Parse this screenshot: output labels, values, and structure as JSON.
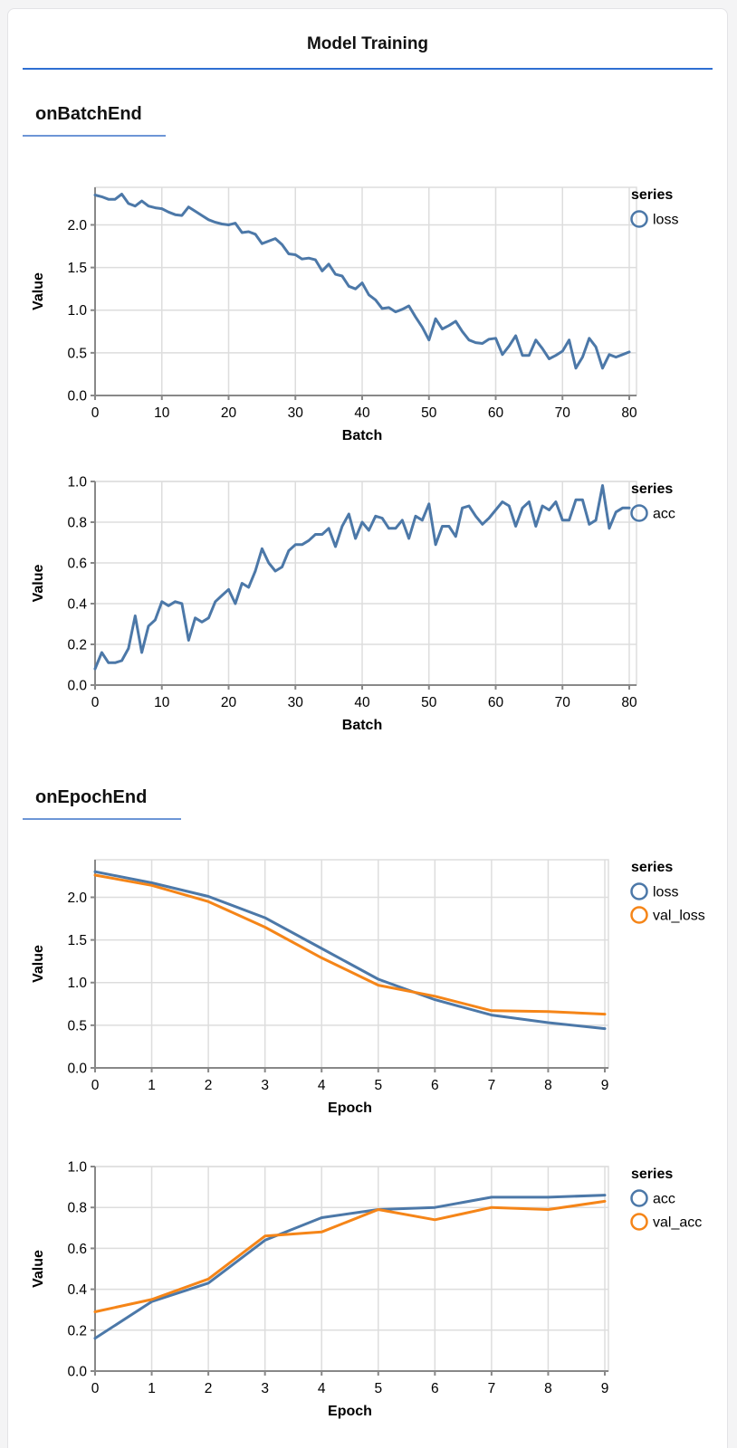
{
  "page": {
    "title": "Model Training"
  },
  "sections": [
    {
      "heading": "onBatchEnd"
    },
    {
      "heading": "onEpochEnd"
    }
  ],
  "colors": {
    "main_rule_blue": "#2e6fd2",
    "section_rule_blue": "#6d96d6",
    "series_blue": "#4c78a8",
    "series_orange": "#f58518",
    "grid": "#dddddd",
    "axis": "#888888",
    "text": "#000000"
  },
  "chart_data": [
    {
      "type": "line",
      "title": "",
      "xlabel": "Batch",
      "ylabel": "Value",
      "legend_title": "series",
      "legend_position": "right-top",
      "grid": true,
      "xlim": [
        0,
        80
      ],
      "ylim": [
        0,
        2.44
      ],
      "xticks": [
        0,
        10,
        20,
        30,
        40,
        50,
        60,
        70,
        80
      ],
      "xtick_labels": [
        "0",
        "10",
        "20",
        "30",
        "40",
        "50",
        "60",
        "70",
        "80"
      ],
      "yticks": [
        0,
        0.5,
        1.0,
        1.5,
        2.0
      ],
      "ytick_labels": [
        "0.0",
        "0.5",
        "1.0",
        "1.5",
        "2.0"
      ],
      "x_min": 0,
      "x_step": 1,
      "series": [
        {
          "name": "loss",
          "color": "#4c78a8",
          "values": [
            2.35,
            2.33,
            2.3,
            2.3,
            2.36,
            2.25,
            2.22,
            2.28,
            2.22,
            2.2,
            2.19,
            2.15,
            2.12,
            2.11,
            2.21,
            2.16,
            2.11,
            2.06,
            2.03,
            2.01,
            2.0,
            2.02,
            1.91,
            1.92,
            1.89,
            1.78,
            1.81,
            1.84,
            1.77,
            1.66,
            1.65,
            1.6,
            1.61,
            1.59,
            1.46,
            1.54,
            1.42,
            1.4,
            1.28,
            1.25,
            1.32,
            1.18,
            1.12,
            1.02,
            1.03,
            0.98,
            1.01,
            1.05,
            0.92,
            0.8,
            0.65,
            0.9,
            0.78,
            0.82,
            0.87,
            0.75,
            0.65,
            0.62,
            0.61,
            0.66,
            0.67,
            0.48,
            0.58,
            0.7,
            0.47,
            0.47,
            0.65,
            0.55,
            0.43,
            0.47,
            0.52,
            0.65,
            0.32,
            0.45,
            0.67,
            0.57,
            0.32,
            0.48,
            0.45,
            0.48,
            0.51
          ]
        }
      ]
    },
    {
      "type": "line",
      "title": "",
      "xlabel": "Batch",
      "ylabel": "Value",
      "legend_title": "series",
      "legend_position": "right-top",
      "grid": true,
      "xlim": [
        0,
        80
      ],
      "ylim": [
        0,
        1.0
      ],
      "xticks": [
        0,
        10,
        20,
        30,
        40,
        50,
        60,
        70,
        80
      ],
      "xtick_labels": [
        "0",
        "10",
        "20",
        "30",
        "40",
        "50",
        "60",
        "70",
        "80"
      ],
      "yticks": [
        0,
        0.2,
        0.4,
        0.6,
        0.8,
        1.0
      ],
      "ytick_labels": [
        "0.0",
        "0.2",
        "0.4",
        "0.6",
        "0.8",
        "1.0"
      ],
      "x_min": 0,
      "x_step": 1,
      "series": [
        {
          "name": "acc",
          "color": "#4c78a8",
          "values": [
            0.08,
            0.16,
            0.11,
            0.11,
            0.12,
            0.18,
            0.34,
            0.16,
            0.29,
            0.32,
            0.41,
            0.39,
            0.41,
            0.4,
            0.22,
            0.33,
            0.31,
            0.33,
            0.41,
            0.44,
            0.47,
            0.4,
            0.5,
            0.48,
            0.56,
            0.67,
            0.6,
            0.56,
            0.58,
            0.66,
            0.69,
            0.69,
            0.71,
            0.74,
            0.74,
            0.77,
            0.68,
            0.78,
            0.84,
            0.72,
            0.8,
            0.76,
            0.83,
            0.82,
            0.77,
            0.77,
            0.81,
            0.72,
            0.83,
            0.81,
            0.89,
            0.69,
            0.78,
            0.78,
            0.73,
            0.87,
            0.88,
            0.83,
            0.79,
            0.82,
            0.86,
            0.9,
            0.88,
            0.78,
            0.87,
            0.9,
            0.78,
            0.88,
            0.86,
            0.9,
            0.81,
            0.81,
            0.91,
            0.91,
            0.79,
            0.81,
            0.98,
            0.77,
            0.85,
            0.87,
            0.87
          ]
        }
      ]
    },
    {
      "type": "line",
      "title": "",
      "xlabel": "Epoch",
      "ylabel": "Value",
      "legend_title": "series",
      "legend_position": "right-top",
      "grid": true,
      "xlim": [
        0,
        9
      ],
      "ylim": [
        0,
        2.44
      ],
      "xticks": [
        0,
        1,
        2,
        3,
        4,
        5,
        6,
        7,
        8,
        9
      ],
      "xtick_labels": [
        "0",
        "1",
        "2",
        "3",
        "4",
        "5",
        "6",
        "7",
        "8",
        "9"
      ],
      "yticks": [
        0,
        0.5,
        1.0,
        1.5,
        2.0
      ],
      "ytick_labels": [
        "0.0",
        "0.5",
        "1.0",
        "1.5",
        "2.0"
      ],
      "x": [
        0,
        1,
        2,
        3,
        4,
        5,
        6,
        7,
        8,
        9
      ],
      "series": [
        {
          "name": "loss",
          "color": "#4c78a8",
          "values": [
            2.3,
            2.17,
            2.01,
            1.76,
            1.4,
            1.04,
            0.8,
            0.62,
            0.53,
            0.46
          ]
        },
        {
          "name": "val_loss",
          "color": "#f58518",
          "values": [
            2.26,
            2.14,
            1.95,
            1.65,
            1.29,
            0.97,
            0.84,
            0.67,
            0.66,
            0.63
          ]
        }
      ]
    },
    {
      "type": "line",
      "title": "",
      "xlabel": "Epoch",
      "ylabel": "Value",
      "legend_title": "series",
      "legend_position": "right-top",
      "grid": true,
      "xlim": [
        0,
        9
      ],
      "ylim": [
        0,
        1.0
      ],
      "xticks": [
        0,
        1,
        2,
        3,
        4,
        5,
        6,
        7,
        8,
        9
      ],
      "xtick_labels": [
        "0",
        "1",
        "2",
        "3",
        "4",
        "5",
        "6",
        "7",
        "8",
        "9"
      ],
      "yticks": [
        0,
        0.2,
        0.4,
        0.6,
        0.8,
        1.0
      ],
      "ytick_labels": [
        "0.0",
        "0.2",
        "0.4",
        "0.6",
        "0.8",
        "1.0"
      ],
      "x": [
        0,
        1,
        2,
        3,
        4,
        5,
        6,
        7,
        8,
        9
      ],
      "series": [
        {
          "name": "acc",
          "color": "#4c78a8",
          "values": [
            0.16,
            0.34,
            0.43,
            0.64,
            0.75,
            0.79,
            0.8,
            0.85,
            0.85,
            0.86
          ]
        },
        {
          "name": "val_acc",
          "color": "#f58518",
          "values": [
            0.29,
            0.35,
            0.45,
            0.66,
            0.68,
            0.79,
            0.74,
            0.8,
            0.79,
            0.83
          ]
        }
      ]
    }
  ]
}
